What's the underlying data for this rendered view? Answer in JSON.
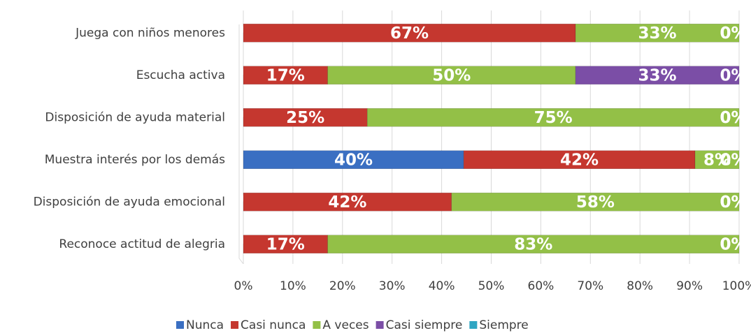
{
  "chart_data": {
    "type": "bar_stacked_100_horizontal",
    "categories": [
      "Juega con niños menores",
      "Escucha activa",
      "Disposición de ayuda material",
      "Muestra interés por los demás",
      "Disposición de ayuda emocional",
      "Reconoce actitud de alegria"
    ],
    "series": [
      {
        "name": "Nunca",
        "color": "#3a6fc2",
        "values": [
          0,
          0,
          0,
          40,
          0,
          0
        ],
        "value_labels": [
          "0%",
          "0%",
          "0%",
          "40%",
          "0%",
          "0%"
        ]
      },
      {
        "name": "Casi nunca",
        "color": "#c5372f",
        "values": [
          67,
          17,
          25,
          42,
          42,
          17
        ],
        "value_labels": [
          "67%",
          "17%",
          "25%",
          "42%",
          "42%",
          "17%"
        ]
      },
      {
        "name": "A veces",
        "color": "#93c047",
        "values": [
          33,
          50,
          75,
          8,
          58,
          83
        ],
        "value_labels": [
          "33%",
          "50%",
          "75%",
          "8%",
          "58%",
          "83%"
        ]
      },
      {
        "name": "Casi siempre",
        "color": "#7b4ea6",
        "values": [
          0,
          33,
          0,
          0,
          0,
          0
        ],
        "value_labels": [
          "0%",
          "33%",
          "0%",
          "0%",
          "0%",
          "0%"
        ]
      },
      {
        "name": "Siempre",
        "color": "#2fa6c3",
        "values": [
          0,
          0,
          0,
          0,
          0,
          0
        ],
        "value_labels": [
          "0%",
          "0%",
          "0%",
          "0%",
          "0%",
          "0%"
        ]
      }
    ],
    "xlim": [
      0,
      100
    ],
    "xticks": [
      {
        "value": 0,
        "label": "0%"
      },
      {
        "value": 10,
        "label": "10%"
      },
      {
        "value": 20,
        "label": "20%"
      },
      {
        "value": 30,
        "label": "30%"
      },
      {
        "value": 40,
        "label": "40%"
      },
      {
        "value": 50,
        "label": "50%"
      },
      {
        "value": 60,
        "label": "60%"
      },
      {
        "value": 70,
        "label": "70%"
      },
      {
        "value": 80,
        "label": "80%"
      },
      {
        "value": 90,
        "label": "90%"
      },
      {
        "value": 100,
        "label": "100%"
      }
    ],
    "grid": true,
    "legend": "bottom"
  }
}
